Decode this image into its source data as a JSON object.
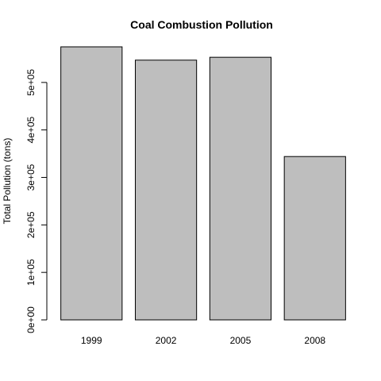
{
  "chart_data": {
    "type": "bar",
    "title": "Coal Combustion Pollution",
    "xlabel": "",
    "ylabel": "Total Pollution (tons)",
    "categories": [
      "1999",
      "2002",
      "2005",
      "2008"
    ],
    "values": [
      575000,
      547000,
      553000,
      344000
    ],
    "ylim": [
      0,
      575000
    ],
    "yticks": [
      0,
      100000,
      200000,
      300000,
      400000,
      500000
    ],
    "ytick_labels": [
      "0e+00",
      "1e+05",
      "2e+05",
      "3e+05",
      "4e+05",
      "5e+05"
    ],
    "bar_color": "#bebebe",
    "grid": false,
    "legend": "none"
  }
}
